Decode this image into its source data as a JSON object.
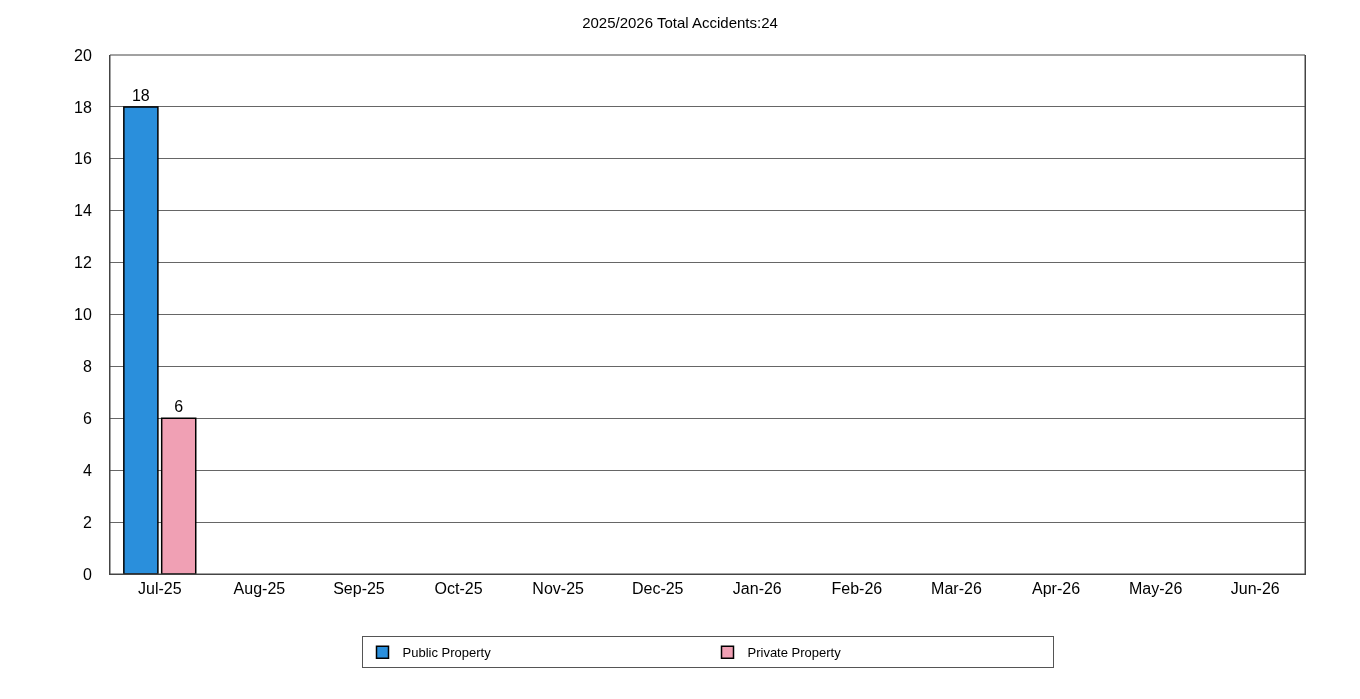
{
  "chart_data": {
    "type": "bar",
    "title": "2025/2026 Total Accidents:24",
    "categories": [
      "Jul-25",
      "Aug-25",
      "Sep-25",
      "Oct-25",
      "Nov-25",
      "Dec-25",
      "Jan-26",
      "Feb-26",
      "Mar-26",
      "Apr-26",
      "May-26",
      "Jun-26"
    ],
    "series": [
      {
        "name": "Public Property",
        "color": "#2a8fdc",
        "values": [
          18,
          null,
          null,
          null,
          null,
          null,
          null,
          null,
          null,
          null,
          null,
          null
        ]
      },
      {
        "name": "Private Property",
        "color": "#f0a0b4",
        "values": [
          6,
          null,
          null,
          null,
          null,
          null,
          null,
          null,
          null,
          null,
          null,
          null
        ]
      }
    ],
    "ylim": [
      0,
      20
    ],
    "yticks": [
      0,
      2,
      4,
      6,
      8,
      10,
      12,
      14,
      16,
      18,
      20
    ],
    "grid": "y",
    "legend": "bottom",
    "data_labels": true
  }
}
